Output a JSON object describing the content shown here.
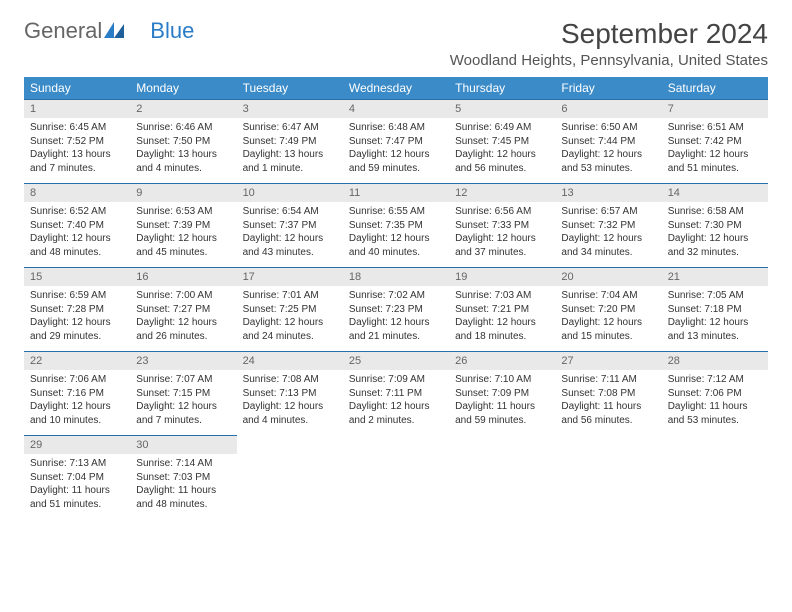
{
  "logo": {
    "text1": "General",
    "text2": "Blue"
  },
  "title": "September 2024",
  "location": "Woodland Heights, Pennsylvania, United States",
  "colors": {
    "header_bg": "#3b8bc9",
    "header_text": "#ffffff",
    "daynum_bg": "#e9e9e9",
    "row_border": "#2a6fa8",
    "logo_blue": "#2a7cc7"
  },
  "day_headers": [
    "Sunday",
    "Monday",
    "Tuesday",
    "Wednesday",
    "Thursday",
    "Friday",
    "Saturday"
  ],
  "days": [
    {
      "n": 1,
      "sunrise": "6:45 AM",
      "sunset": "7:52 PM",
      "daylight": "13 hours and 7 minutes."
    },
    {
      "n": 2,
      "sunrise": "6:46 AM",
      "sunset": "7:50 PM",
      "daylight": "13 hours and 4 minutes."
    },
    {
      "n": 3,
      "sunrise": "6:47 AM",
      "sunset": "7:49 PM",
      "daylight": "13 hours and 1 minute."
    },
    {
      "n": 4,
      "sunrise": "6:48 AM",
      "sunset": "7:47 PM",
      "daylight": "12 hours and 59 minutes."
    },
    {
      "n": 5,
      "sunrise": "6:49 AM",
      "sunset": "7:45 PM",
      "daylight": "12 hours and 56 minutes."
    },
    {
      "n": 6,
      "sunrise": "6:50 AM",
      "sunset": "7:44 PM",
      "daylight": "12 hours and 53 minutes."
    },
    {
      "n": 7,
      "sunrise": "6:51 AM",
      "sunset": "7:42 PM",
      "daylight": "12 hours and 51 minutes."
    },
    {
      "n": 8,
      "sunrise": "6:52 AM",
      "sunset": "7:40 PM",
      "daylight": "12 hours and 48 minutes."
    },
    {
      "n": 9,
      "sunrise": "6:53 AM",
      "sunset": "7:39 PM",
      "daylight": "12 hours and 45 minutes."
    },
    {
      "n": 10,
      "sunrise": "6:54 AM",
      "sunset": "7:37 PM",
      "daylight": "12 hours and 43 minutes."
    },
    {
      "n": 11,
      "sunrise": "6:55 AM",
      "sunset": "7:35 PM",
      "daylight": "12 hours and 40 minutes."
    },
    {
      "n": 12,
      "sunrise": "6:56 AM",
      "sunset": "7:33 PM",
      "daylight": "12 hours and 37 minutes."
    },
    {
      "n": 13,
      "sunrise": "6:57 AM",
      "sunset": "7:32 PM",
      "daylight": "12 hours and 34 minutes."
    },
    {
      "n": 14,
      "sunrise": "6:58 AM",
      "sunset": "7:30 PM",
      "daylight": "12 hours and 32 minutes."
    },
    {
      "n": 15,
      "sunrise": "6:59 AM",
      "sunset": "7:28 PM",
      "daylight": "12 hours and 29 minutes."
    },
    {
      "n": 16,
      "sunrise": "7:00 AM",
      "sunset": "7:27 PM",
      "daylight": "12 hours and 26 minutes."
    },
    {
      "n": 17,
      "sunrise": "7:01 AM",
      "sunset": "7:25 PM",
      "daylight": "12 hours and 24 minutes."
    },
    {
      "n": 18,
      "sunrise": "7:02 AM",
      "sunset": "7:23 PM",
      "daylight": "12 hours and 21 minutes."
    },
    {
      "n": 19,
      "sunrise": "7:03 AM",
      "sunset": "7:21 PM",
      "daylight": "12 hours and 18 minutes."
    },
    {
      "n": 20,
      "sunrise": "7:04 AM",
      "sunset": "7:20 PM",
      "daylight": "12 hours and 15 minutes."
    },
    {
      "n": 21,
      "sunrise": "7:05 AM",
      "sunset": "7:18 PM",
      "daylight": "12 hours and 13 minutes."
    },
    {
      "n": 22,
      "sunrise": "7:06 AM",
      "sunset": "7:16 PM",
      "daylight": "12 hours and 10 minutes."
    },
    {
      "n": 23,
      "sunrise": "7:07 AM",
      "sunset": "7:15 PM",
      "daylight": "12 hours and 7 minutes."
    },
    {
      "n": 24,
      "sunrise": "7:08 AM",
      "sunset": "7:13 PM",
      "daylight": "12 hours and 4 minutes."
    },
    {
      "n": 25,
      "sunrise": "7:09 AM",
      "sunset": "7:11 PM",
      "daylight": "12 hours and 2 minutes."
    },
    {
      "n": 26,
      "sunrise": "7:10 AM",
      "sunset": "7:09 PM",
      "daylight": "11 hours and 59 minutes."
    },
    {
      "n": 27,
      "sunrise": "7:11 AM",
      "sunset": "7:08 PM",
      "daylight": "11 hours and 56 minutes."
    },
    {
      "n": 28,
      "sunrise": "7:12 AM",
      "sunset": "7:06 PM",
      "daylight": "11 hours and 53 minutes."
    },
    {
      "n": 29,
      "sunrise": "7:13 AM",
      "sunset": "7:04 PM",
      "daylight": "11 hours and 51 minutes."
    },
    {
      "n": 30,
      "sunrise": "7:14 AM",
      "sunset": "7:03 PM",
      "daylight": "11 hours and 48 minutes."
    }
  ],
  "labels": {
    "sunrise": "Sunrise:",
    "sunset": "Sunset:",
    "daylight": "Daylight:"
  },
  "layout": {
    "columns": 7,
    "first_day_offset": 0,
    "total_cells": 35
  }
}
